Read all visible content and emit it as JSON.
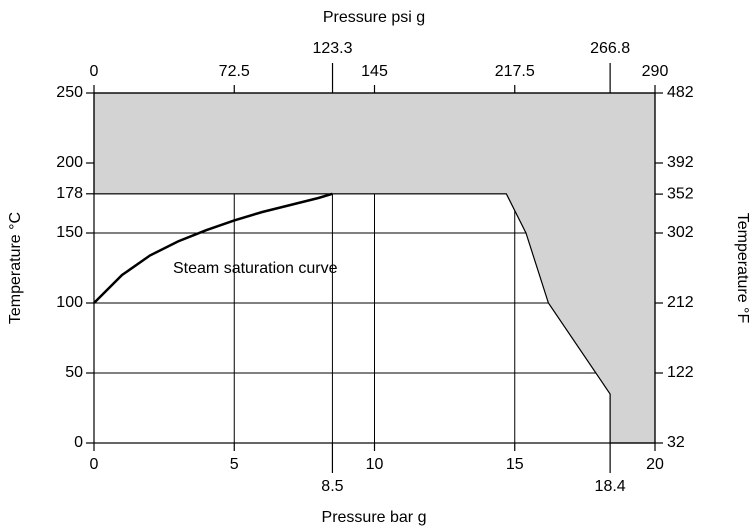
{
  "chart_data": {
    "type": "line",
    "xlabel": "Pressure bar g",
    "ylabel": "Temperature °C",
    "x2label": "Pressure psi g",
    "y2label": "Temperature °F",
    "xlim": [
      0,
      20
    ],
    "xticks": [
      0,
      5,
      10,
      15,
      20
    ],
    "xticks_secondary": [
      8.5,
      18.4
    ],
    "x2lim": [
      0,
      290
    ],
    "x2ticks": [
      0,
      72.5,
      145,
      217.5,
      290
    ],
    "x2ticks_secondary": [
      123.3,
      266.8
    ],
    "ylim": [
      0,
      250
    ],
    "yticks": [
      0,
      50,
      100,
      150,
      178,
      200,
      250
    ],
    "y2lim": [
      32,
      482
    ],
    "y2ticks": [
      32,
      122,
      212,
      302,
      352,
      392,
      482
    ],
    "grid": true,
    "series": [
      {
        "name": "Steam saturation curve",
        "color": "#000000",
        "x": [
          0,
          1,
          2,
          3,
          4,
          5,
          6,
          7,
          8,
          8.5
        ],
        "values": [
          100,
          120,
          134,
          144,
          152,
          159,
          165,
          170,
          175,
          178
        ]
      }
    ],
    "operating_region": {
      "color": "#d3d3d3",
      "x": [
        0,
        20,
        20,
        18.4,
        18.4,
        16.2,
        15.4,
        14.7,
        0
      ],
      "values": [
        250,
        250,
        0,
        0,
        35,
        100,
        150,
        178,
        178
      ]
    }
  }
}
